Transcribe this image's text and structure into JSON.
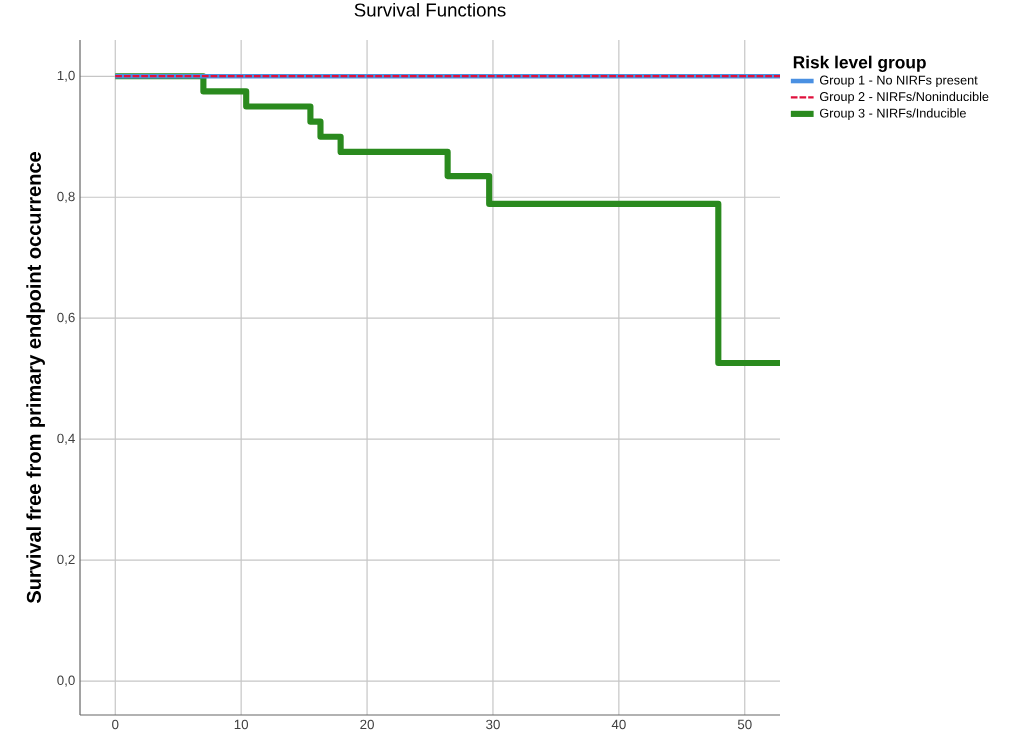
{
  "chart_data": {
    "type": "step",
    "title": "Survival Functions",
    "ylabel": "Survival free from primary endpoint occurrence",
    "legend_title": "Risk level group",
    "xlim": [
      -2.8,
      52.8
    ],
    "ylim": [
      -0.056,
      1.06
    ],
    "xticks": [
      0,
      10,
      20,
      30,
      40,
      50
    ],
    "yticks": [
      {
        "value": 0.0,
        "label": "0,0"
      },
      {
        "value": 0.2,
        "label": "0,2"
      },
      {
        "value": 0.4,
        "label": "0,4"
      },
      {
        "value": 0.6,
        "label": "0,6"
      },
      {
        "value": 0.8,
        "label": "0,8"
      },
      {
        "value": 1.0,
        "label": "1,0"
      }
    ],
    "grid": true,
    "legend": "right",
    "series": [
      {
        "name": "Group 1 - No NIRFs present",
        "color": "#4a90e2",
        "x": [
          0,
          52.8
        ],
        "values": [
          1.0,
          1.0
        ]
      },
      {
        "name": "Group 2 - NIRFs/Noninducible",
        "color": "#e0103c",
        "line_style": "dashed",
        "x": [
          0,
          52.8
        ],
        "values": [
          1.0,
          1.0
        ]
      },
      {
        "name": "Group 3 - NIRFs/Inducible",
        "color": "#2a8a1e",
        "x": [
          0,
          7.0,
          10.4,
          15.5,
          16.3,
          17.9,
          26.4,
          29.7,
          47.9,
          52.8
        ],
        "values": [
          1.0,
          0.975,
          0.95,
          0.925,
          0.9,
          0.875,
          0.835,
          0.789,
          0.526,
          0.526
        ]
      }
    ]
  }
}
